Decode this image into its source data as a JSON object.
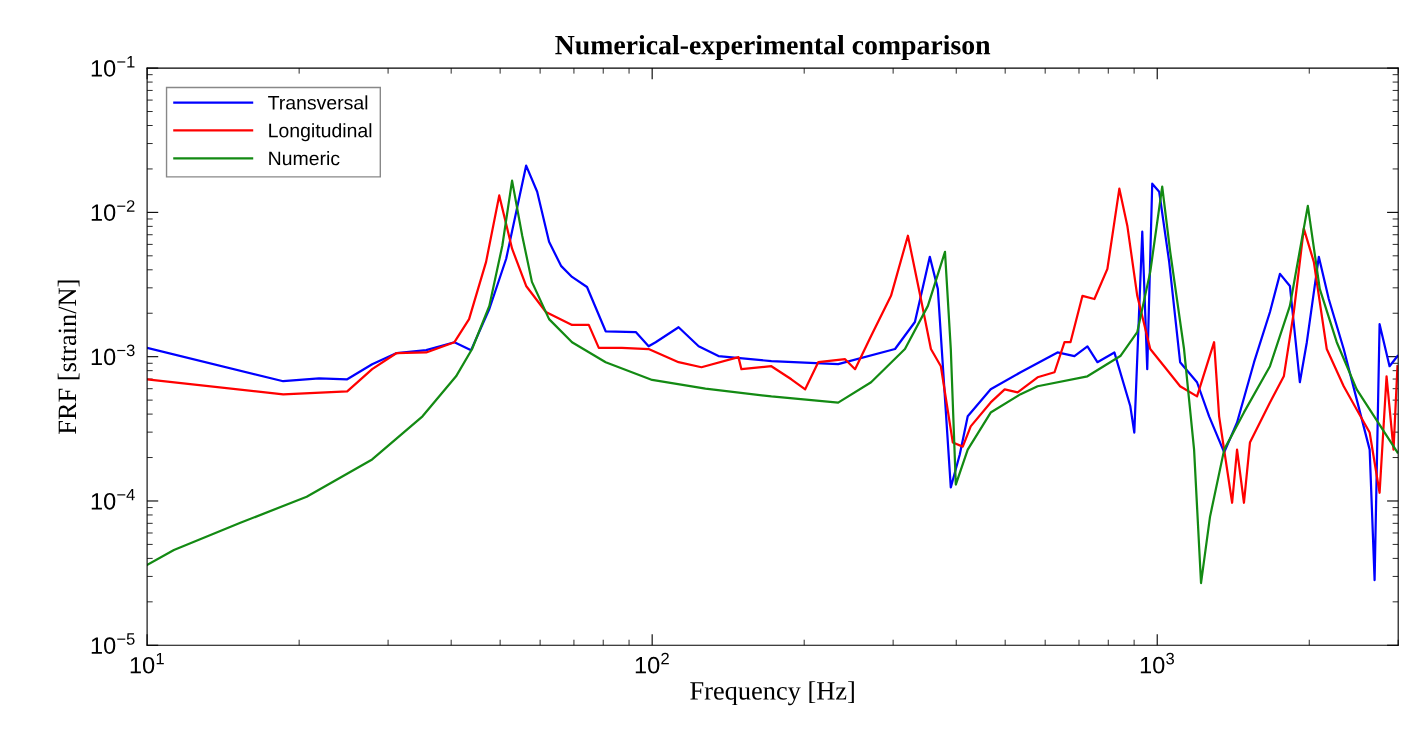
{
  "chart_data": {
    "type": "line",
    "title": "Numerical-experimental comparison",
    "xlabel": "Frequency [Hz]",
    "ylabel": "FRF [strain/N]",
    "log": "xy",
    "xlim": [
      10,
      3000
    ],
    "ylim": [
      1e-05,
      0.1
    ],
    "xticks": [
      {
        "value": 10,
        "label": "10$^{1}$"
      },
      {
        "value": 100,
        "label": "10$^{2}$"
      },
      {
        "value": 1000,
        "label": "10$^{3}$"
      }
    ],
    "yticks": [
      {
        "value": 1e-05,
        "label": "10$^{−5}$"
      },
      {
        "value": 0.0001,
        "label": "10$^{−4}$"
      },
      {
        "value": 0.001,
        "label": "10$^{−3}$"
      },
      {
        "value": 0.01,
        "label": "10$^{−2}$"
      },
      {
        "value": 0.1,
        "label": "10$^{−1}$"
      }
    ],
    "grid": false,
    "legend": "top left",
    "line_style": "solid",
    "marker": "none",
    "series": [
      {
        "name": "Transversal",
        "color": "#0000ff",
        "x": [
          10,
          18.6,
          21.9,
          24.9,
          27.9,
          31.2,
          35.7,
          40.6,
          43.8,
          47.6,
          51.4,
          56.3,
          59.2,
          62.5,
          66.0,
          69.4,
          74.3,
          80.9,
          92.8,
          98.4,
          101.6,
          112.8,
          123.6,
          135.3,
          172.2,
          233.5,
          302.6,
          331.3,
          354.6,
          367.8,
          390.2,
          406.5,
          421.5,
          468,
          536.5,
          634.7,
          685.6,
          727.5,
          761.3,
          822.6,
          884.6,
          900.8,
          934.1,
          955.5,
          977.5,
          1009,
          1056,
          1110,
          1199,
          1267,
          1357,
          1439,
          1555,
          1672,
          1750,
          1831,
          1916,
          1978,
          2089,
          2186,
          2340,
          2483,
          2634,
          2694,
          2756,
          2884,
          2990
        ],
        "values": [
          0.00115,
          0.000676,
          0.000708,
          0.000697,
          0.000887,
          0.00106,
          0.00111,
          0.00126,
          0.00111,
          0.00214,
          0.00477,
          0.0211,
          0.0139,
          0.00626,
          0.00426,
          0.00357,
          0.00304,
          0.0015,
          0.00148,
          0.00118,
          0.00126,
          0.0016,
          0.00118,
          0.00101,
          0.000931,
          0.000887,
          0.00113,
          0.00174,
          0.00492,
          0.00295,
          0.000124,
          0.00021,
          0.000386,
          0.000594,
          0.00078,
          0.00107,
          0.00101,
          0.00118,
          0.000916,
          0.00107,
          0.000453,
          0.000298,
          0.00735,
          0.000819,
          0.0158,
          0.0139,
          0.00454,
          0.000916,
          0.000665,
          0.000386,
          0.000217,
          0.00035,
          0.000916,
          0.00204,
          0.00375,
          0.00309,
          0.000665,
          0.00126,
          0.00492,
          0.00251,
          0.00113,
          0.000506,
          0.000227,
          2.83e-05,
          0.00168,
          0.000859,
          0.00101
        ]
      },
      {
        "name": "Longitudinal",
        "color": "#ff0000",
        "x": [
          10,
          18.6,
          24.9,
          27.9,
          31.2,
          35.7,
          40.6,
          43.4,
          46.9,
          49.8,
          52.8,
          56.3,
          61.6,
          69.4,
          74.9,
          78.4,
          87.1,
          98.4,
          112.8,
          125.2,
          148.2,
          150.2,
          172.2,
          188.6,
          200.9,
          213.2,
          241,
          252.2,
          271.3,
          297.1,
          320.9,
          340.5,
          356.4,
          372.9,
          393.8,
          412.1,
          427.3,
          468,
          498.9,
          529.2,
          579.6,
          626.1,
          655.3,
          673.4,
          711.2,
          751,
          796.8,
          841.4,
          872.5,
          913,
          968.7,
          1032,
          1110,
          1199,
          1296,
          1326,
          1407,
          1439,
          1485,
          1526,
          1672,
          1781,
          1864,
          1951,
          2042,
          2166,
          2340,
          2483,
          2634,
          2756,
          2845,
          2937,
          2990
        ],
        "values": [
          0.000697,
          0.000548,
          0.000575,
          0.000819,
          0.00106,
          0.00107,
          0.00126,
          0.00182,
          0.00454,
          0.0131,
          0.0056,
          0.00309,
          0.00204,
          0.00166,
          0.00166,
          0.00115,
          0.00115,
          0.00113,
          0.000916,
          0.000845,
          0.000993,
          0.000819,
          0.000859,
          0.000697,
          0.000594,
          0.000916,
          0.000961,
          0.000819,
          0.00139,
          0.00264,
          0.00689,
          0.00251,
          0.00113,
          0.000859,
          0.000254,
          0.000238,
          0.000329,
          0.000482,
          0.000594,
          0.000566,
          0.00072,
          0.00078,
          0.00126,
          0.00126,
          0.00264,
          0.00251,
          0.00406,
          0.0146,
          0.00809,
          0.00264,
          0.00113,
          0.000859,
          0.000624,
          0.000531,
          0.00126,
          0.000386,
          9.72e-05,
          0.000227,
          9.72e-05,
          0.000254,
          0.000482,
          0.000731,
          0.00204,
          0.00771,
          0.00454,
          0.00113,
          0.000624,
          0.000431,
          0.000298,
          0.000114,
          0.000731,
          0.000227,
          0.000859
        ]
      },
      {
        "name": "Numeric",
        "color": "#138a13",
        "x": [
          10,
          11.3,
          15.3,
          20.7,
          27.9,
          35.1,
          40.9,
          44.0,
          47.6,
          50.5,
          52.8,
          55.3,
          57.8,
          62.5,
          69.4,
          80.9,
          100,
          127.5,
          172.2,
          233.5,
          271.3,
          316.6,
          351.5,
          380,
          390.2,
          399.2,
          421.5,
          468,
          536.5,
          579.6,
          727.5,
          845.3,
          913,
          968.7,
          1023,
          1061,
          1130,
          1183,
          1221,
          1272,
          1357,
          1485,
          1672,
          1831,
          1987,
          2098,
          2267,
          2483,
          2990
        ],
        "values": [
          3.6e-05,
          4.58e-05,
          7.06e-05,
          0.000107,
          0.000194,
          0.000386,
          0.000731,
          0.00113,
          0.00225,
          0.00587,
          0.0166,
          0.00689,
          0.0033,
          0.00182,
          0.00126,
          0.000916,
          0.00069,
          0.0006,
          0.00053,
          0.00048,
          0.000665,
          0.00113,
          0.00225,
          0.00533,
          0.00113,
          0.00013,
          0.000227,
          0.00041,
          0.00055,
          0.000624,
          0.000731,
          0.00101,
          0.00148,
          0.00387,
          0.0151,
          0.00533,
          0.00113,
          0.000227,
          2.7e-05,
          7.76e-05,
          0.000227,
          0.000411,
          0.000859,
          0.00225,
          0.0111,
          0.00295,
          0.00126,
          0.000594,
          0.000217
        ]
      }
    ]
  }
}
